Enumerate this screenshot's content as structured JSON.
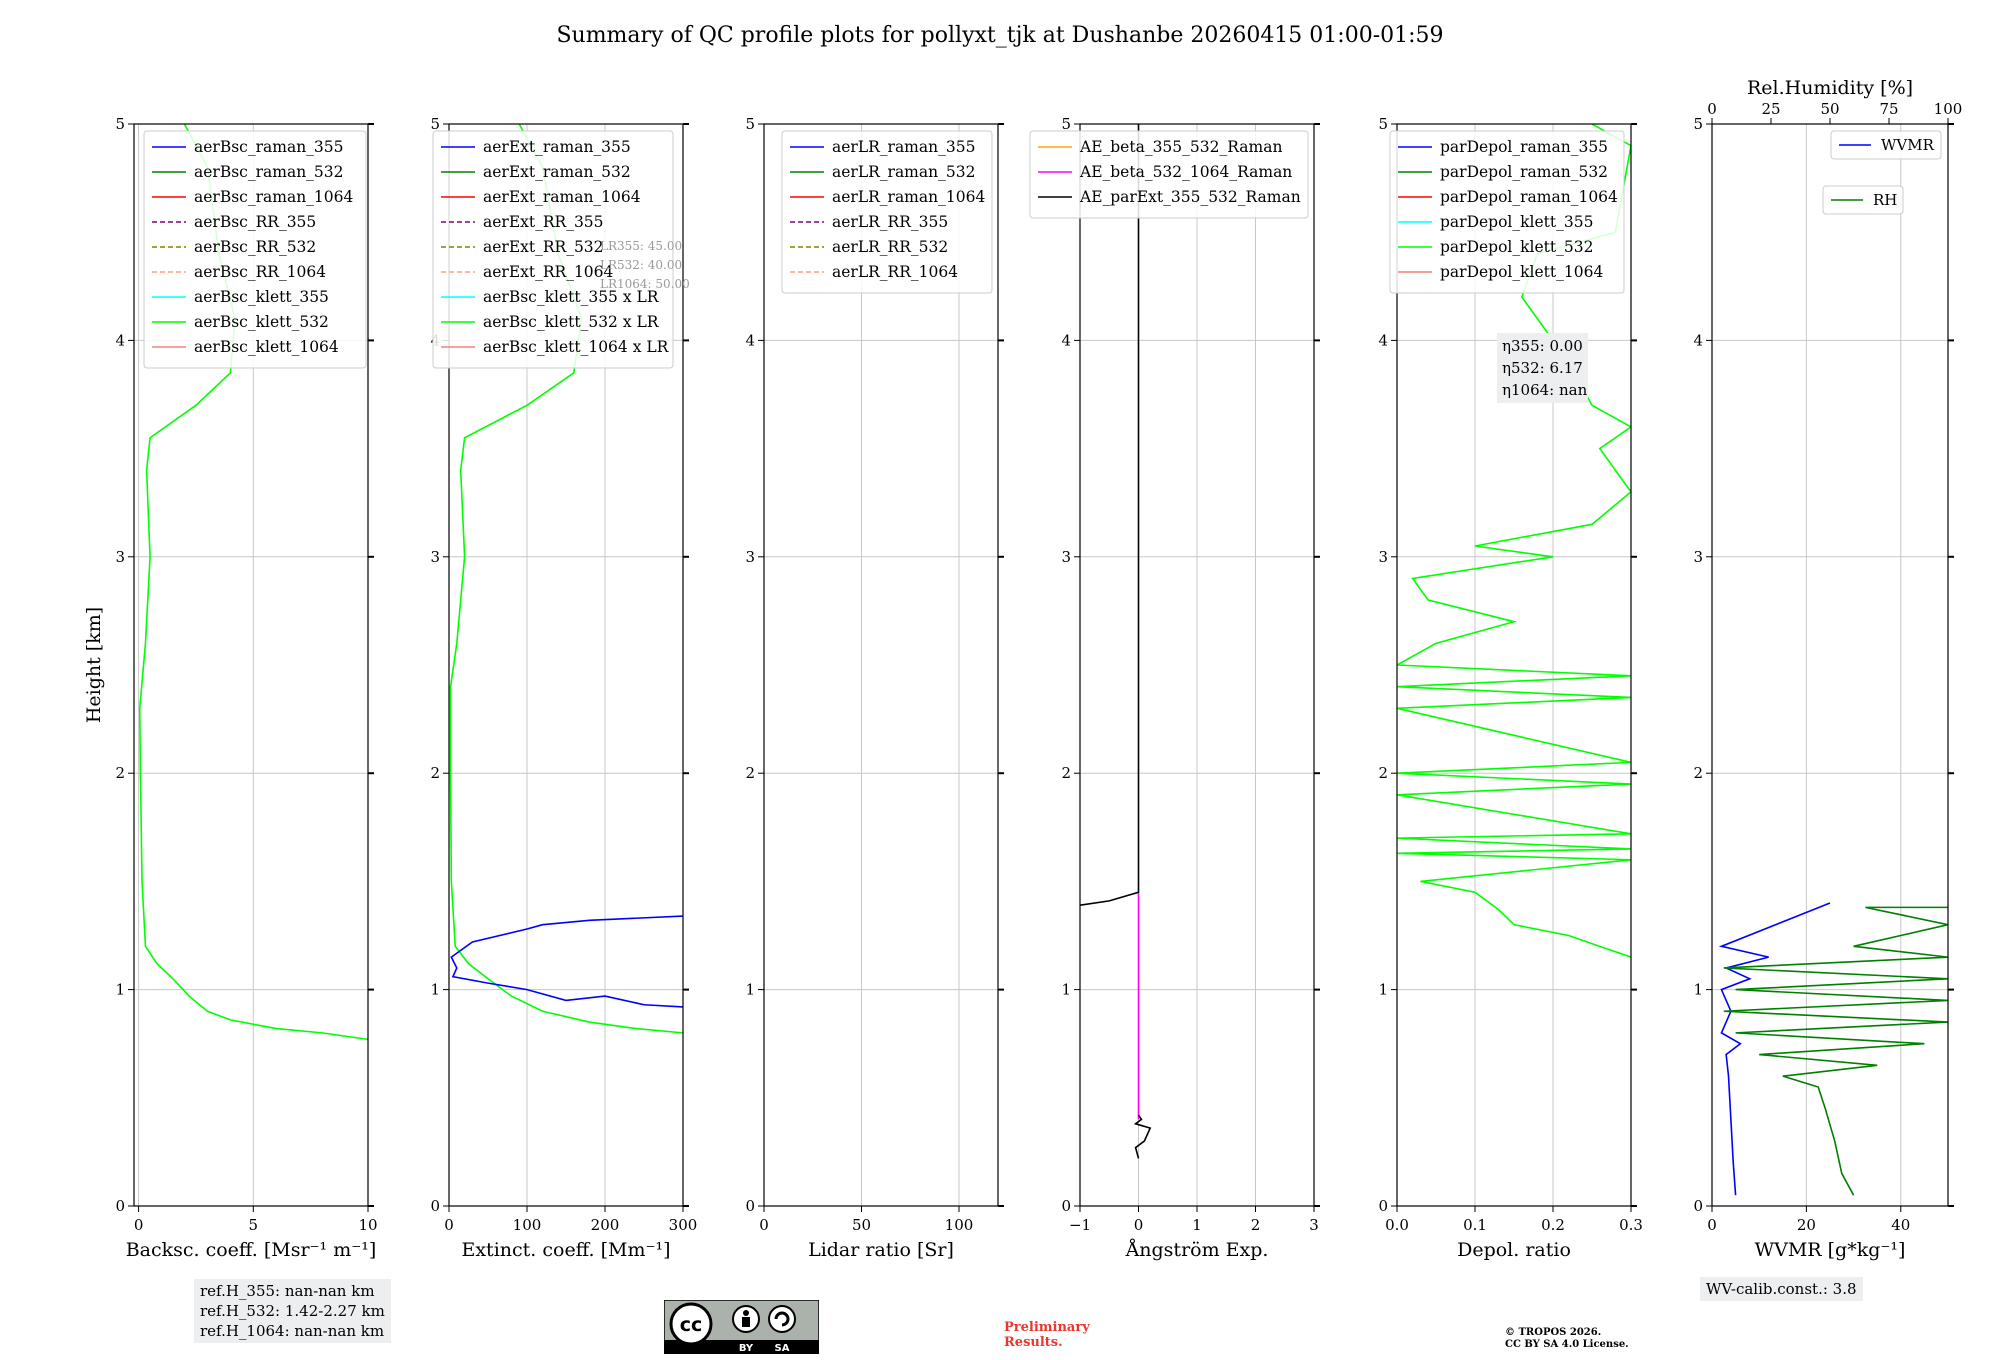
{
  "title": "Summary of QC profile plots for pollyxt_tjk at Dushanbe 20260415 01:00-01:59",
  "colors": {
    "raman_355": "#0000ff",
    "raman_532": "#008000",
    "raman_1064": "#ff0000",
    "rr_355": "#800080",
    "rr_532": "#808000",
    "rr_1064": "#ffa07a",
    "klett_355": "#00ffff",
    "klett_532": "#00ff00",
    "klett_1064": "#f08080",
    "ae_355_532": "#ffa500",
    "ae_532_1064": "#ff00ff",
    "ae_parext": "#000000",
    "wvmr": "#0000ff",
    "rh": "#008000",
    "prelim": "#e8372f"
  },
  "chart_data": [
    {
      "type": "line",
      "id": "backscatter",
      "xlabel": "Backsc. coeff. [Msr⁻¹ m⁻¹]",
      "ylabel": "Height [km]",
      "xlim": [
        -0.2,
        10
      ],
      "ylim": [
        0,
        5
      ],
      "xticks": [
        0,
        5,
        10
      ],
      "yticks": [
        0,
        1,
        2,
        3,
        4,
        5
      ],
      "legend": [
        {
          "label": "aerBsc_raman_355",
          "color": "#0000ff",
          "dash": false
        },
        {
          "label": "aerBsc_raman_532",
          "color": "#008000",
          "dash": false
        },
        {
          "label": "aerBsc_raman_1064",
          "color": "#ff0000",
          "dash": false
        },
        {
          "label": "aerBsc_RR_355",
          "color": "#800080",
          "dash": true
        },
        {
          "label": "aerBsc_RR_532",
          "color": "#808000",
          "dash": true
        },
        {
          "label": "aerBsc_RR_1064",
          "color": "#ffa07a",
          "dash": true
        },
        {
          "label": "aerBsc_klett_355",
          "color": "#00ffff",
          "dash": false
        },
        {
          "label": "aerBsc_klett_532",
          "color": "#00ff00",
          "dash": false
        },
        {
          "label": "aerBsc_klett_1064",
          "color": "#f08080",
          "dash": false
        }
      ],
      "series": [
        {
          "name": "aerBsc_klett_532",
          "color": "#00ff00",
          "points": [
            [
              10,
              0.77
            ],
            [
              8,
              0.8
            ],
            [
              6,
              0.82
            ],
            [
              4,
              0.86
            ],
            [
              3,
              0.9
            ],
            [
              2.2,
              0.97
            ],
            [
              1.5,
              1.05
            ],
            [
              0.8,
              1.12
            ],
            [
              0.3,
              1.2
            ],
            [
              0.15,
              1.5
            ],
            [
              0.08,
              2.0
            ],
            [
              0.05,
              2.3
            ],
            [
              0.3,
              2.6
            ],
            [
              0.5,
              3.0
            ],
            [
              0.35,
              3.4
            ],
            [
              0.5,
              3.55
            ],
            [
              2.5,
              3.7
            ],
            [
              4,
              3.85
            ],
            [
              4.2,
              4.1
            ],
            [
              3.5,
              4.4
            ],
            [
              3.0,
              4.8
            ],
            [
              2.0,
              5.0
            ]
          ]
        }
      ]
    },
    {
      "type": "line",
      "id": "extinction",
      "xlabel": "Extinct. coeff. [Mm⁻¹]",
      "xlim": [
        0,
        300
      ],
      "ylim": [
        0,
        5
      ],
      "xticks": [
        0,
        100,
        200,
        300
      ],
      "yticks": [
        0,
        1,
        2,
        3,
        4,
        5
      ],
      "legend": [
        {
          "label": "aerExt_raman_355",
          "color": "#0000ff",
          "dash": false
        },
        {
          "label": "aerExt_raman_532",
          "color": "#008000",
          "dash": false
        },
        {
          "label": "aerExt_raman_1064",
          "color": "#ff0000",
          "dash": false
        },
        {
          "label": "aerExt_RR_355",
          "color": "#800080",
          "dash": true
        },
        {
          "label": "aerExt_RR_532",
          "color": "#808000",
          "dash": true
        },
        {
          "label": "aerExt_RR_1064",
          "color": "#ffa07a",
          "dash": true
        },
        {
          "label": "aerBsc_klett_355 x LR",
          "color": "#00ffff",
          "dash": false
        },
        {
          "label": "aerBsc_klett_532 x LR",
          "color": "#00ff00",
          "dash": false
        },
        {
          "label": "aerBsc_klett_1064 x LR",
          "color": "#f08080",
          "dash": false
        }
      ],
      "lr_note": [
        "LR355: 45.00",
        "LR532: 40.00",
        "LR1064: 50.00"
      ],
      "series": [
        {
          "name": "aerBsc_klett_532 x LR",
          "color": "#00ff00",
          "points": [
            [
              300,
              0.8
            ],
            [
              240,
              0.82
            ],
            [
              180,
              0.85
            ],
            [
              120,
              0.9
            ],
            [
              80,
              0.97
            ],
            [
              50,
              1.05
            ],
            [
              25,
              1.12
            ],
            [
              8,
              1.2
            ],
            [
              3,
              1.5
            ],
            [
              2,
              2.0
            ],
            [
              2,
              2.4
            ],
            [
              10,
              2.6
            ],
            [
              20,
              3.0
            ],
            [
              15,
              3.4
            ],
            [
              20,
              3.55
            ],
            [
              100,
              3.7
            ],
            [
              160,
              3.85
            ],
            [
              170,
              4.1
            ],
            [
              140,
              4.4
            ],
            [
              120,
              4.8
            ],
            [
              90,
              5.0
            ]
          ]
        },
        {
          "name": "aerExt_raman_355",
          "color": "#0000ff",
          "points": [
            [
              300,
              0.92
            ],
            [
              250,
              0.93
            ],
            [
              200,
              0.97
            ],
            [
              150,
              0.95
            ],
            [
              100,
              1.0
            ],
            [
              50,
              1.03
            ],
            [
              5,
              1.06
            ],
            [
              10,
              1.1
            ],
            [
              3,
              1.15
            ],
            [
              30,
              1.22
            ],
            [
              100,
              1.28
            ],
            [
              120,
              1.3
            ],
            [
              180,
              1.32
            ],
            [
              300,
              1.34
            ]
          ]
        }
      ]
    },
    {
      "type": "line",
      "id": "lidar-ratio",
      "xlabel": "Lidar ratio [Sr]",
      "xlim": [
        0,
        120
      ],
      "ylim": [
        0,
        5
      ],
      "xticks": [
        0,
        50,
        100
      ],
      "yticks": [
        0,
        1,
        2,
        3,
        4,
        5
      ],
      "legend": [
        {
          "label": "aerLR_raman_355",
          "color": "#0000ff",
          "dash": false
        },
        {
          "label": "aerLR_raman_532",
          "color": "#008000",
          "dash": false
        },
        {
          "label": "aerLR_raman_1064",
          "color": "#ff0000",
          "dash": false
        },
        {
          "label": "aerLR_RR_355",
          "color": "#800080",
          "dash": true
        },
        {
          "label": "aerLR_RR_532",
          "color": "#808000",
          "dash": true
        },
        {
          "label": "aerLR_RR_1064",
          "color": "#ffa07a",
          "dash": true
        }
      ],
      "series": []
    },
    {
      "type": "line",
      "id": "angstrom",
      "xlabel": "Ångström Exp.",
      "xlim": [
        -1,
        3
      ],
      "ylim": [
        0,
        5
      ],
      "xticks": [
        -1,
        0,
        1,
        2,
        3
      ],
      "yticks": [
        0,
        1,
        2,
        3,
        4,
        5
      ],
      "legend": [
        {
          "label": "AE_beta_355_532_Raman",
          "color": "#ffa500",
          "dash": false
        },
        {
          "label": "AE_beta_532_1064_Raman",
          "color": "#ff00ff",
          "dash": false
        },
        {
          "label": "AE_parExt_355_532_Raman",
          "color": "#000000",
          "dash": false
        }
      ],
      "series": [
        {
          "name": "AE_beta_532_1064_Raman",
          "color": "#ff00ff",
          "points": [
            [
              0,
              0.4
            ],
            [
              0,
              1.45
            ]
          ]
        },
        {
          "name": "AE_parExt_355_532_Raman",
          "color": "#000000",
          "points": [
            [
              0,
              0.22
            ],
            [
              -0.05,
              0.27
            ],
            [
              0.1,
              0.3
            ],
            [
              0.2,
              0.36
            ],
            [
              -0.05,
              0.38
            ],
            [
              0.05,
              0.4
            ],
            [
              0,
              0.42
            ]
          ]
        },
        {
          "name": "AE_parExt_355_532_Raman (upper)",
          "color": "#000000",
          "points": [
            [
              -1,
              1.39
            ],
            [
              -0.5,
              1.41
            ],
            [
              0,
              1.45
            ],
            [
              0,
              5.0
            ]
          ]
        }
      ]
    },
    {
      "type": "line",
      "id": "depol",
      "xlabel": "Depol. ratio",
      "xlim": [
        0,
        0.3
      ],
      "ylim": [
        0,
        5
      ],
      "xticks": [
        0.0,
        0.1,
        0.2,
        0.3
      ],
      "tick_labels": [
        "0.0",
        "0.1",
        "0.2",
        "0.3"
      ],
      "yticks": [
        0,
        1,
        2,
        3,
        4,
        5
      ],
      "legend": [
        {
          "label": "parDepol_raman_355",
          "color": "#0000ff",
          "dash": false
        },
        {
          "label": "parDepol_raman_532",
          "color": "#008000",
          "dash": false
        },
        {
          "label": "parDepol_raman_1064",
          "color": "#ff0000",
          "dash": false
        },
        {
          "label": "parDepol_klett_355",
          "color": "#00ffff",
          "dash": false
        },
        {
          "label": "parDepol_klett_532",
          "color": "#00ff00",
          "dash": false
        },
        {
          "label": "parDepol_klett_1064",
          "color": "#f08080",
          "dash": false
        }
      ],
      "eta_note": [
        "η355: 0.00",
        "η532: 6.17",
        "η1064: nan"
      ],
      "series": [
        {
          "name": "parDepol_klett_532",
          "color": "#00ff00",
          "points": [
            [
              0.3,
              1.15
            ],
            [
              0.26,
              1.2
            ],
            [
              0.22,
              1.25
            ],
            [
              0.15,
              1.3
            ],
            [
              0.13,
              1.37
            ],
            [
              0.1,
              1.45
            ],
            [
              0.03,
              1.5
            ],
            [
              0.3,
              1.6
            ],
            [
              0.0,
              1.63
            ],
            [
              0.3,
              1.65
            ],
            [
              0.0,
              1.7
            ],
            [
              0.3,
              1.72
            ],
            [
              0.0,
              1.9
            ],
            [
              0.3,
              1.95
            ],
            [
              0.0,
              2.0
            ],
            [
              0.3,
              2.05
            ],
            [
              0.0,
              2.3
            ],
            [
              0.3,
              2.35
            ],
            [
              0.0,
              2.4
            ],
            [
              0.3,
              2.45
            ],
            [
              0.0,
              2.5
            ],
            [
              0.05,
              2.6
            ],
            [
              0.15,
              2.7
            ],
            [
              0.04,
              2.8
            ],
            [
              0.02,
              2.9
            ],
            [
              0.2,
              3.0
            ],
            [
              0.1,
              3.05
            ],
            [
              0.25,
              3.15
            ],
            [
              0.3,
              3.3
            ],
            [
              0.26,
              3.5
            ],
            [
              0.3,
              3.6
            ],
            [
              0.25,
              3.7
            ],
            [
              0.22,
              3.9
            ],
            [
              0.2,
              4.0
            ],
            [
              0.16,
              4.2
            ],
            [
              0.18,
              4.4
            ],
            [
              0.28,
              4.5
            ],
            [
              0.3,
              4.9
            ],
            [
              0.25,
              5.0
            ]
          ]
        }
      ]
    },
    {
      "type": "line",
      "id": "wvmr",
      "xlabel": "WVMR [g*kg⁻¹]",
      "top_label": "Rel.Humidity [%]",
      "xlim": [
        0,
        50
      ],
      "top_lim": [
        0,
        100
      ],
      "top_ticks": [
        0,
        25,
        50,
        75,
        100
      ],
      "ylim": [
        0,
        5
      ],
      "xticks": [
        0,
        20,
        40
      ],
      "yticks": [
        0,
        1,
        2,
        3,
        4,
        5
      ],
      "legend": [
        {
          "label": "WVMR",
          "color": "#0000ff",
          "dash": false
        },
        {
          "label": "RH",
          "color": "#008000",
          "dash": false
        }
      ],
      "series": [
        {
          "name": "WVMR",
          "color": "#0000ff",
          "points": [
            [
              5,
              0.05
            ],
            [
              4.5,
              0.2
            ],
            [
              4,
              0.4
            ],
            [
              3.5,
              0.6
            ],
            [
              3,
              0.7
            ],
            [
              6,
              0.75
            ],
            [
              2,
              0.8
            ],
            [
              4,
              0.9
            ],
            [
              2,
              1.0
            ],
            [
              8,
              1.05
            ],
            [
              3,
              1.1
            ],
            [
              12,
              1.15
            ],
            [
              2,
              1.2
            ],
            [
              25,
              1.4
            ]
          ]
        },
        {
          "name": "RH",
          "color": "#008000",
          "points": [
            [
              60,
              0.05
            ],
            [
              55,
              0.15
            ],
            [
              52,
              0.3
            ],
            [
              48,
              0.45
            ],
            [
              45,
              0.55
            ],
            [
              30,
              0.6
            ],
            [
              70,
              0.65
            ],
            [
              20,
              0.7
            ],
            [
              90,
              0.75
            ],
            [
              10,
              0.8
            ],
            [
              100,
              0.85
            ],
            [
              5,
              0.9
            ],
            [
              100,
              0.95
            ],
            [
              10,
              1.0
            ],
            [
              100,
              1.05
            ],
            [
              5,
              1.1
            ],
            [
              100,
              1.15
            ],
            [
              60,
              1.2
            ],
            [
              100,
              1.3
            ],
            [
              65,
              1.38
            ],
            [
              100,
              1.38
            ]
          ]
        }
      ]
    }
  ],
  "ref_heights": [
    "ref.H_355: nan-nan km",
    "ref.H_532: 1.42-2.27 km",
    "ref.H_1064: nan-nan km"
  ],
  "wv_calib": "WV-calib.const.: 3.8",
  "preliminary": [
    "Preliminary",
    "Results."
  ],
  "copyright": [
    "© TROPOS 2026.",
    "CC BY SA 4.0 License."
  ],
  "cc_badge": {
    "cc": "cc",
    "by": "BY",
    "sa": "SA"
  }
}
